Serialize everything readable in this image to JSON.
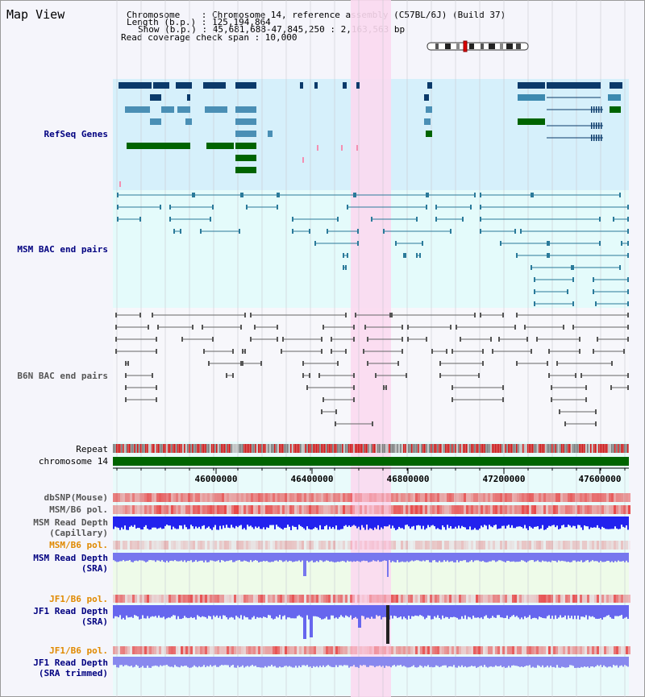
{
  "title": "Map View",
  "header": {
    "chromosome": "Chromosome    : Chromosome 14, reference assembly (C57BL/6J) (Build 37)",
    "length": "Length (b.p.) : 125,194,864",
    "show": "Show (b.p.) : 45,681,688-47,845,250 : 2,163,563 bp",
    "coverage": "Read coverage check span : 10,000"
  },
  "tracks": {
    "refseq": "RefSeq Genes",
    "msm_bac": "MSM BAC end pairs",
    "b6n_bac": "B6N BAC end pairs",
    "repeat": "Repeat",
    "chrom": "chromosome 14",
    "dbsnp": "dbSNP(Mouse)",
    "msm_b6_pol": "MSM/B6 pol.",
    "msm_depth_cap_1": "MSM Read Depth",
    "msm_depth_cap_2": "(Capillary)",
    "msm_b6_pol2": "MSM/B6 pol.",
    "msm_depth_sra_1": "MSM Read Depth",
    "msm_depth_sra_2": "(SRA)",
    "jf1_b6_pol": "JF1/B6 pol.",
    "jf1_depth_sra_1": "JF1 Read Depth",
    "jf1_depth_sra_2": "(SRA)",
    "jf1_b6_pol2": "JF1/B6 pol.",
    "jf1_depth_trim_1": "JF1 Read Depth",
    "jf1_depth_trim_2": "(SRA trimmed)"
  },
  "axis": {
    "ticks": [
      "46000000",
      "46400000",
      "46800000",
      "47200000",
      "47600000"
    ]
  },
  "colors": {
    "refseq_bg": "#d6f0fb",
    "msm_bg": "#e4fbfb",
    "highlight": "#fbd9f0",
    "chrom": "#006400",
    "msm_label": "#000080",
    "orange_label": "#e08a00"
  }
}
